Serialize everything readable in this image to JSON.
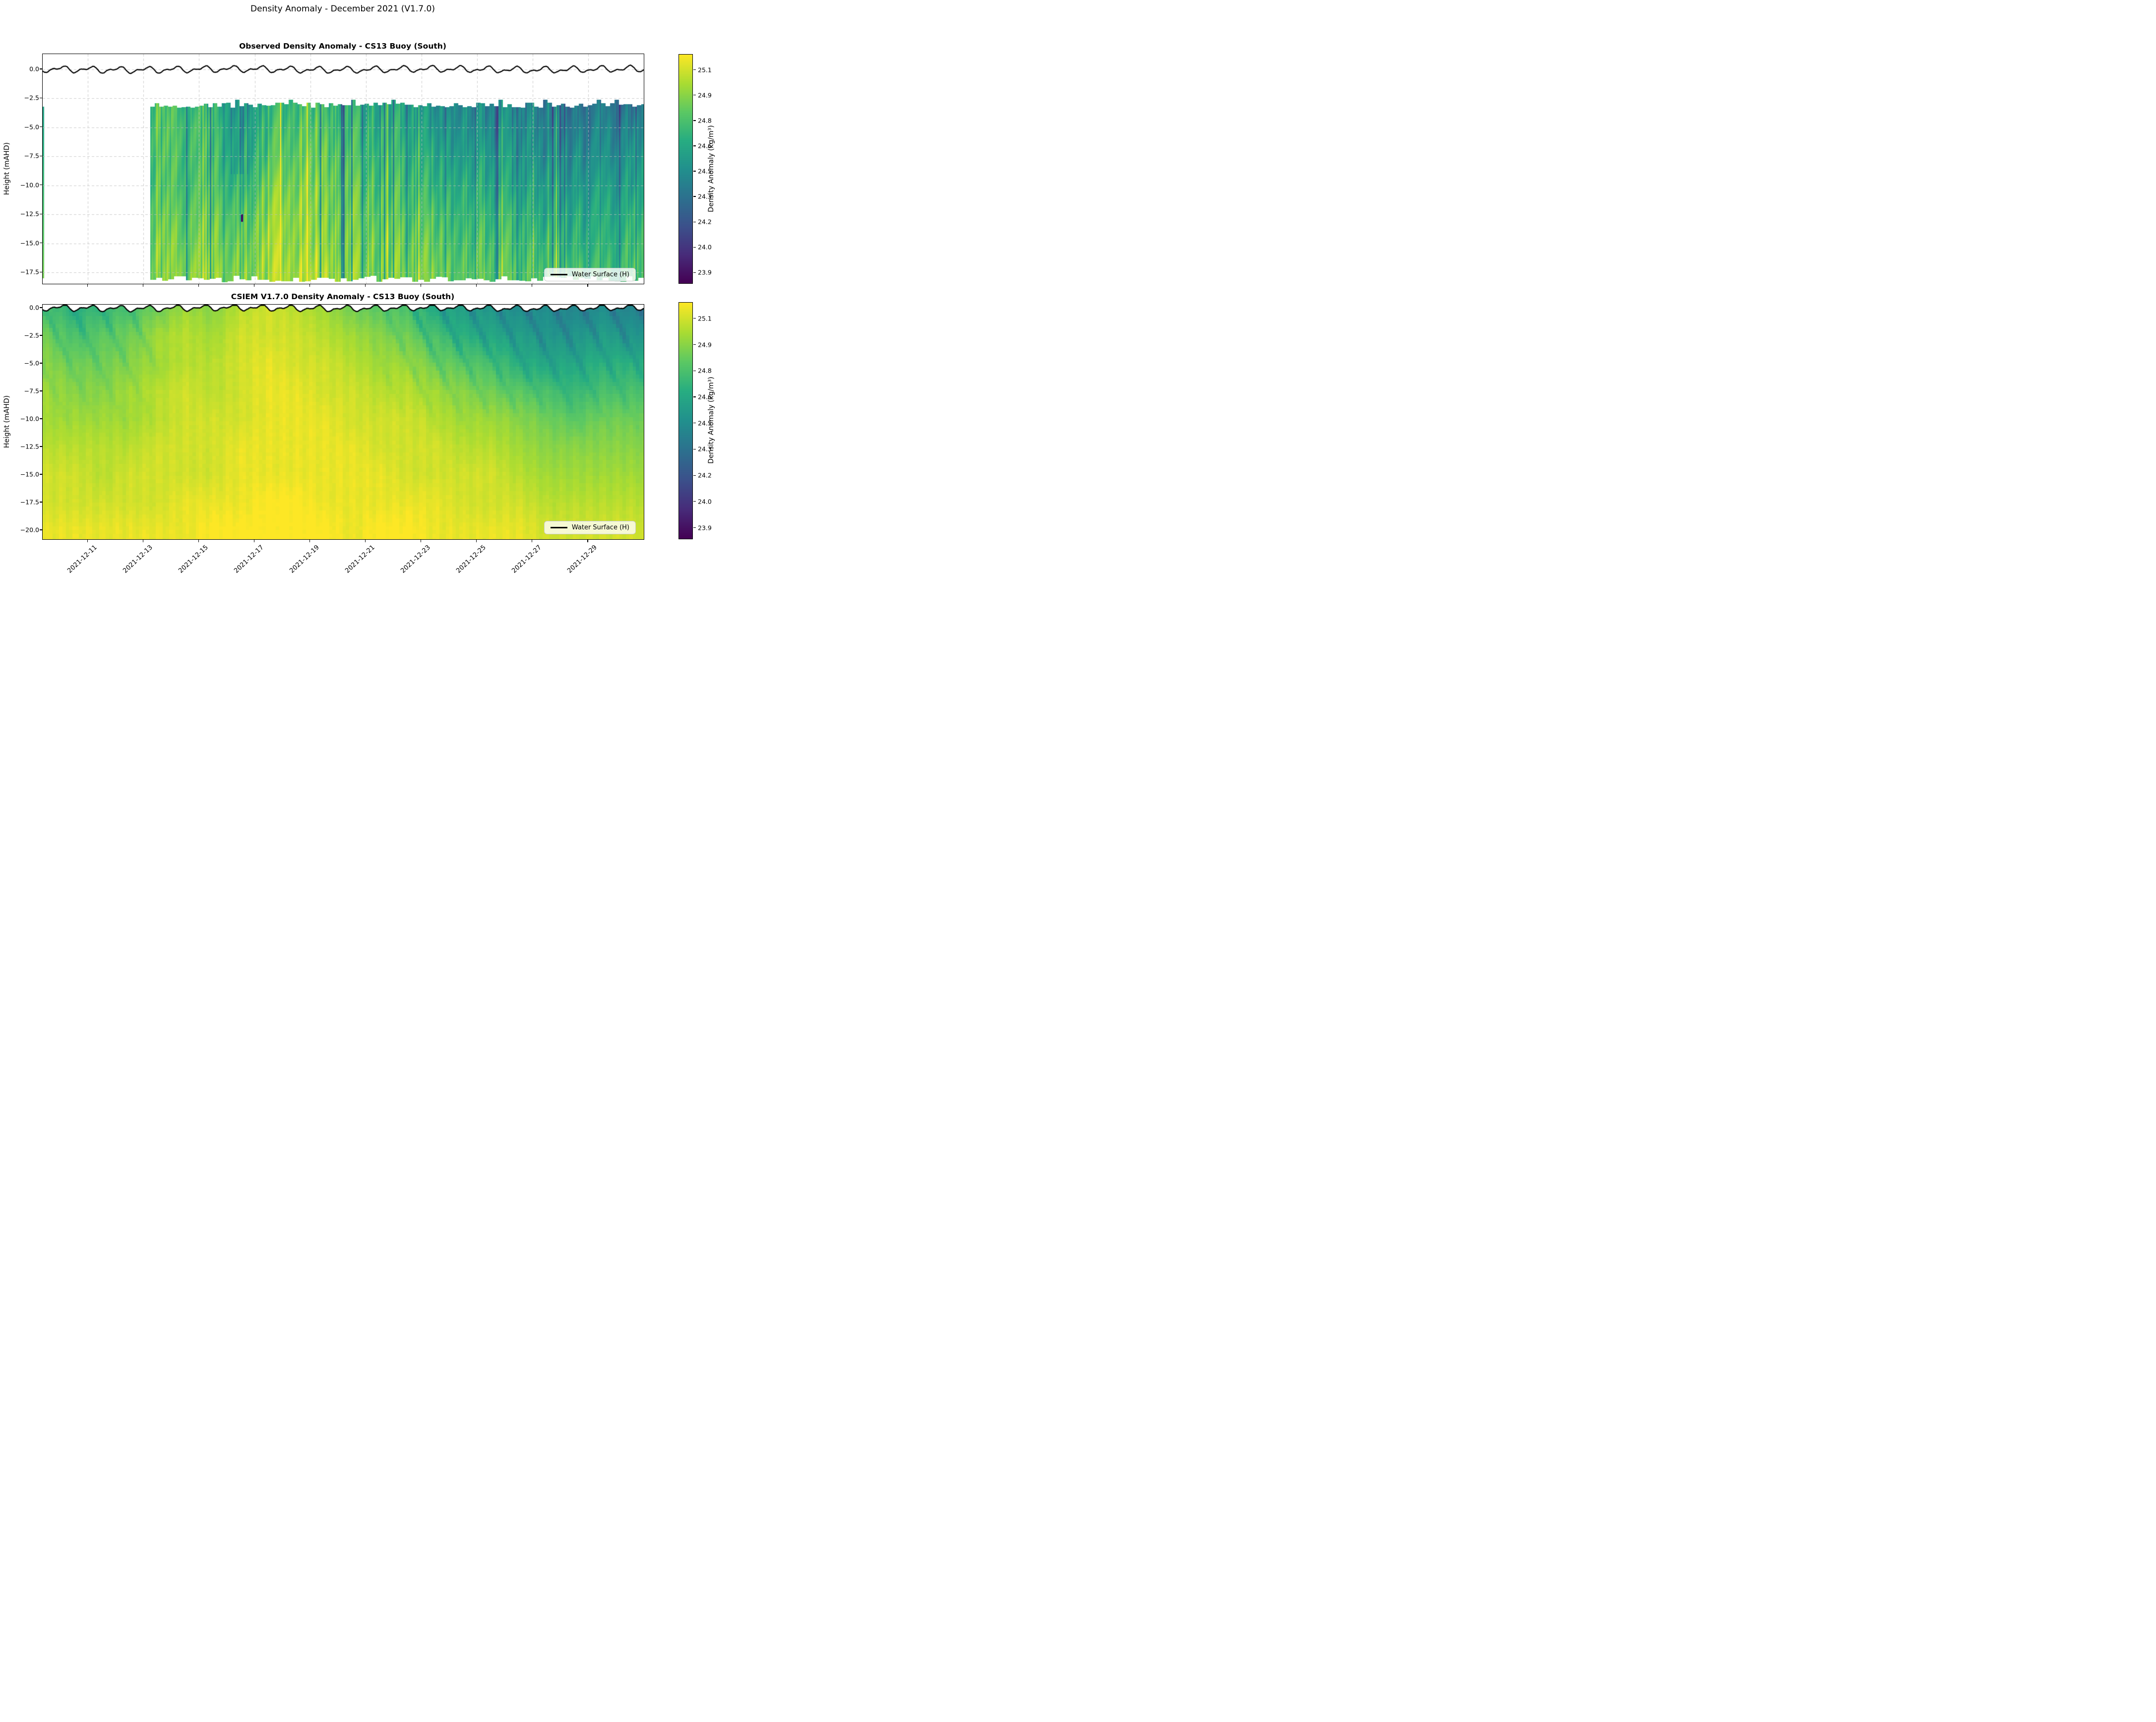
{
  "figure": {
    "title": "Density Anomaly - December 2021 (V1.7.0)",
    "background": "#ffffff"
  },
  "panels": [
    {
      "title": "Observed Density Anomaly - CS13 Buoy (South)",
      "ylabel": "Height (mAHD)",
      "yticks": [
        "0.0",
        "−2.5",
        "−5.0",
        "−7.5",
        "−10.0",
        "−12.5",
        "−15.0",
        "−17.5"
      ],
      "ytick_values": [
        0,
        -2.5,
        -5,
        -7.5,
        -10,
        -12.5,
        -15,
        -17.5
      ],
      "legend": "Water Surface (H)"
    },
    {
      "title": "CSIEM V1.7.0 Density Anomaly - CS13 Buoy (South)",
      "ylabel": "Height (mAHD)",
      "yticks": [
        "0.0",
        "−2.5",
        "−5.0",
        "−7.5",
        "−10.0",
        "−12.5",
        "−15.0",
        "−17.5",
        "−20.0"
      ],
      "ytick_values": [
        0,
        -2.5,
        -5,
        -7.5,
        -10,
        -12.5,
        -15,
        -17.5,
        -20
      ],
      "legend": "Water Surface (H)"
    }
  ],
  "xaxis": {
    "tick_labels": [
      "2021-12-11",
      "2021-12-13",
      "2021-12-15",
      "2021-12-17",
      "2021-12-19",
      "2021-12-21",
      "2021-12-23",
      "2021-12-25",
      "2021-12-27",
      "2021-12-29"
    ],
    "tick_days": [
      11,
      13,
      15,
      17,
      19,
      21,
      23,
      25,
      27,
      29
    ],
    "range_days": [
      9.37,
      31.0
    ]
  },
  "colorbar": {
    "label": "Density Anomaly (kg/m³)",
    "ticks": [
      "25.1",
      "24.9",
      "24.8",
      "24.6",
      "24.5",
      "24.3",
      "24.2",
      "24.0",
      "23.9"
    ],
    "colormap": "viridis",
    "vmin": 23.84,
    "vmax": 25.19
  },
  "chart_data": [
    {
      "type": "heatmap",
      "title": "Observed Density Anomaly - CS13 Buoy (South)",
      "xlabel": "",
      "ylabel": "Height (mAHD)",
      "units": "kg/m³",
      "x_days_december_2021": [
        13.5,
        14.5,
        15.5,
        16.5,
        17.5,
        18.5,
        19.5,
        20.5,
        21.5,
        22.5,
        23.5,
        24.5,
        25.5,
        26.5,
        27.5,
        28.5,
        29.5,
        30.5
      ],
      "y_mAHD": [
        -3,
        -5,
        -7.5,
        -10,
        -12.5,
        -15,
        -17.5
      ],
      "values": [
        [
          24.8,
          24.75,
          24.7,
          24.55,
          24.7,
          24.8,
          24.75,
          24.7,
          24.65,
          24.6,
          24.5,
          24.5,
          24.45,
          24.45,
          24.4,
          24.35,
          24.4,
          24.35
        ],
        [
          24.8,
          24.8,
          24.75,
          24.6,
          24.75,
          24.85,
          24.8,
          24.75,
          24.7,
          24.65,
          24.55,
          24.55,
          24.5,
          24.5,
          24.45,
          24.4,
          24.45,
          24.45
        ],
        [
          24.8,
          24.8,
          24.75,
          24.65,
          24.8,
          24.9,
          24.85,
          24.8,
          24.75,
          24.7,
          24.65,
          24.6,
          24.6,
          24.55,
          24.5,
          24.5,
          24.5,
          24.55
        ],
        [
          24.8,
          24.8,
          24.8,
          24.7,
          24.9,
          24.95,
          24.9,
          24.85,
          24.8,
          24.75,
          24.7,
          24.7,
          24.65,
          24.6,
          24.6,
          24.55,
          24.6,
          24.6
        ],
        [
          24.85,
          24.85,
          24.85,
          24.8,
          24.95,
          25.0,
          24.9,
          24.9,
          24.85,
          24.8,
          24.8,
          24.75,
          24.75,
          24.7,
          24.65,
          24.65,
          24.65,
          24.7
        ],
        [
          24.9,
          24.9,
          24.9,
          24.85,
          25.0,
          25.0,
          24.95,
          24.9,
          24.9,
          24.85,
          24.85,
          24.8,
          24.8,
          24.75,
          24.75,
          24.7,
          24.7,
          24.75
        ],
        [
          24.9,
          24.95,
          24.95,
          24.9,
          25.0,
          25.05,
          25.0,
          24.95,
          24.9,
          24.9,
          24.9,
          24.85,
          24.85,
          24.8,
          24.8,
          24.8,
          24.75,
          24.8
        ]
      ],
      "data_start_day": 13.25,
      "data_top_mAHD": -2.9,
      "data_bottom_mAHD": -18.0,
      "ylim": [
        -18.5,
        1.3
      ],
      "features": {
        "dark_streak_days": [
          20.13,
          20.21
        ],
        "bright_streak_days": [
          15.25,
          17.93,
          27.86
        ],
        "min_value_spot": {
          "day": 16.54,
          "mAHD": -12.8,
          "value": 23.9
        }
      },
      "water_surface": {
        "label": "Water Surface (H)",
        "mean_mAHD": 0.0,
        "range_mAHD": [
          -0.37,
          0.37
        ],
        "pattern": "tidal oscillation"
      },
      "grid": "dashed",
      "legend_position": "lower right"
    },
    {
      "type": "heatmap",
      "title": "CSIEM V1.7.0 Density Anomaly - CS13 Buoy (South)",
      "xlabel": "",
      "ylabel": "Height (mAHD)",
      "units": "kg/m³",
      "x_days_december_2021": [
        9.5,
        10.5,
        11.5,
        12.5,
        13.5,
        14.5,
        15.5,
        16.5,
        17.5,
        18.5,
        19.5,
        20.5,
        21.5,
        22.5,
        23.5,
        24.5,
        25.5,
        26.5,
        27.5,
        28.5,
        29.5,
        30.5
      ],
      "y_mAHD": [
        0,
        -2.5,
        -5,
        -7.5,
        -10,
        -12.5,
        -15,
        -17.5,
        -20
      ],
      "values": [
        [
          24.8,
          24.7,
          24.75,
          24.8,
          24.9,
          25.0,
          24.95,
          25.05,
          25.1,
          25.05,
          25.0,
          24.9,
          24.85,
          24.8,
          24.65,
          24.6,
          24.55,
          24.5,
          24.5,
          24.45,
          24.5,
          24.45
        ],
        [
          24.9,
          24.8,
          24.85,
          24.9,
          25.0,
          25.05,
          25.0,
          25.1,
          25.1,
          25.1,
          25.05,
          25.0,
          24.95,
          24.9,
          24.8,
          24.7,
          24.65,
          24.6,
          24.55,
          24.55,
          24.6,
          24.55
        ],
        [
          24.95,
          24.9,
          24.9,
          24.95,
          25.0,
          25.05,
          25.05,
          25.1,
          25.15,
          25.1,
          25.1,
          25.05,
          25.0,
          25.0,
          24.9,
          24.85,
          24.8,
          24.7,
          24.65,
          24.65,
          24.7,
          24.7
        ],
        [
          25.0,
          24.95,
          24.95,
          25.0,
          25.05,
          25.1,
          25.05,
          25.1,
          25.15,
          25.15,
          25.1,
          25.1,
          25.05,
          25.05,
          25.0,
          24.95,
          24.9,
          24.85,
          24.8,
          24.75,
          24.8,
          24.8
        ],
        [
          25.0,
          25.0,
          25.0,
          25.0,
          25.05,
          25.1,
          25.1,
          25.1,
          25.15,
          25.15,
          25.15,
          25.1,
          25.1,
          25.1,
          25.05,
          25.0,
          25.0,
          24.95,
          24.9,
          24.85,
          24.9,
          24.9
        ],
        [
          25.05,
          25.05,
          25.05,
          25.05,
          25.1,
          25.1,
          25.1,
          25.15,
          25.15,
          25.15,
          25.15,
          25.15,
          25.1,
          25.1,
          25.1,
          25.05,
          25.05,
          25.0,
          24.95,
          24.95,
          24.95,
          24.95
        ],
        [
          25.1,
          25.1,
          25.05,
          25.1,
          25.1,
          25.1,
          25.1,
          25.15,
          25.15,
          25.15,
          25.15,
          25.15,
          25.15,
          25.1,
          25.1,
          25.1,
          25.1,
          25.05,
          25.0,
          25.0,
          25.0,
          25.0
        ],
        [
          25.1,
          25.1,
          25.1,
          25.1,
          25.1,
          25.15,
          25.15,
          25.15,
          25.2,
          25.2,
          25.15,
          25.15,
          25.15,
          25.15,
          25.15,
          25.1,
          25.1,
          25.1,
          25.05,
          25.05,
          25.05,
          25.05
        ],
        [
          25.15,
          25.15,
          25.15,
          25.15,
          25.15,
          25.15,
          25.2,
          25.2,
          25.2,
          25.2,
          25.2,
          25.15,
          25.2,
          25.2,
          25.15,
          25.15,
          25.15,
          25.15,
          25.1,
          25.1,
          25.1,
          25.1
        ]
      ],
      "ylim": [
        -20.8,
        0.31
      ],
      "water_surface": {
        "label": "Water Surface (H)",
        "mean_mAHD": 0.0,
        "range_mAHD": [
          -0.37,
          0.37
        ],
        "pattern": "tidal oscillation, clipped at panel top"
      },
      "grid": "off",
      "legend_position": "lower right"
    }
  ]
}
